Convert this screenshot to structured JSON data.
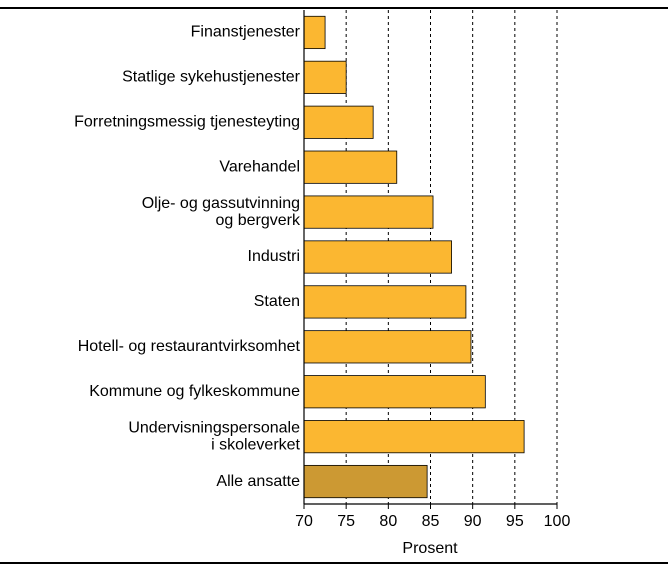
{
  "chart_data": {
    "type": "hbar",
    "categories": [
      "Finanstjenester",
      "Statlige sykehustjenester",
      "Forretningsmessig tjenesteyting",
      "Varehandel",
      [
        "Olje- og gassutvinning",
        "og bergverk"
      ],
      "Industri",
      "Staten",
      "Hotell- og restaurantvirksomhet",
      "Kommune og fylkeskommune",
      [
        "Undervisningspersonale",
        "i skoleverket"
      ],
      "Alle ansatte"
    ],
    "values": [
      72.5,
      75,
      78.2,
      81,
      85.3,
      87.5,
      89.2,
      89.8,
      91.5,
      96.1,
      84.6
    ],
    "colors": [
      "#fbb731",
      "#fbb731",
      "#fbb731",
      "#fbb731",
      "#fbb731",
      "#fbb731",
      "#fbb731",
      "#fbb731",
      "#fbb731",
      "#fbb731",
      "#cc9933"
    ],
    "xlabel": "Prosent",
    "xlim": [
      70,
      100
    ],
    "xticks": [
      70,
      75,
      80,
      85,
      90,
      95,
      100
    ],
    "grid": true
  }
}
